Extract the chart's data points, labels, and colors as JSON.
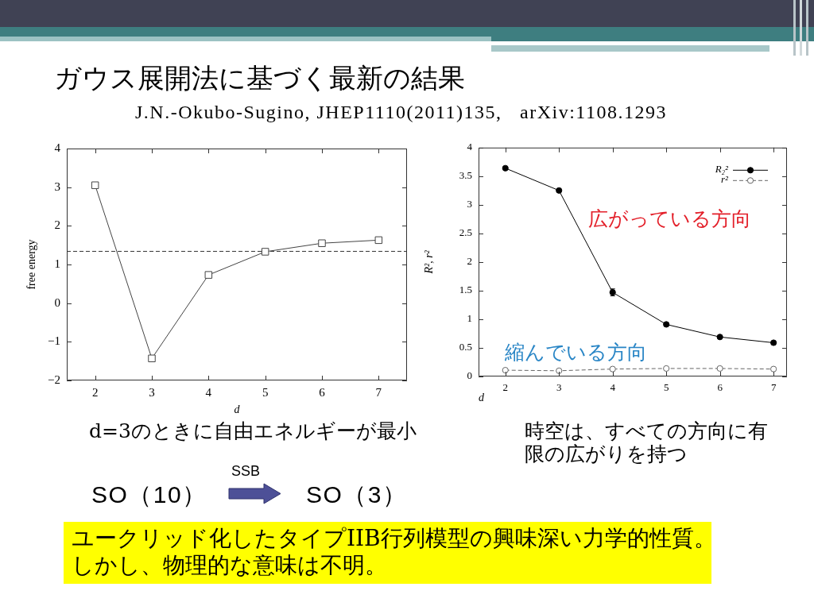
{
  "chart_data": [
    {
      "type": "other",
      "title": "ガウス展開法に基づく最新の結果",
      "subtitle": "J.N.-Okubo-Sugino, JHEP1110(2011)135,   arXiv:1108.1293"
    },
    {
      "type": "line",
      "xlabel": "d",
      "ylabel": "free energy",
      "x": [
        2,
        3,
        4,
        5,
        6,
        7
      ],
      "values": [
        3.05,
        -1.43,
        0.73,
        1.33,
        1.55,
        1.63
      ],
      "color": "#444444",
      "marker": "square",
      "xlim": [
        1.5,
        7.5
      ],
      "xticks": [
        2,
        3,
        4,
        5,
        6,
        7
      ],
      "ylim": [
        -2,
        4
      ],
      "yticks": [
        -2,
        -1,
        0,
        1,
        2,
        3,
        4
      ],
      "ref_lines": [
        {
          "axis": "y",
          "value": 1.34,
          "color": "#333333",
          "line_style": "dashed"
        }
      ],
      "annotations": [
        "d=3のときに自由エネルギーが最小"
      ]
    },
    {
      "type": "line",
      "xlabel": "d",
      "ylabel": "R², r²",
      "x": [
        2,
        3,
        4,
        5,
        6,
        7
      ],
      "series": [
        {
          "name": "R₂²",
          "color": "#000000",
          "values": [
            3.64,
            3.25,
            1.47,
            0.91,
            0.69,
            0.59
          ],
          "errors": [
            null,
            null,
            0.06,
            null,
            null,
            null
          ]
        },
        {
          "name": "r²",
          "color": "#666666",
          "line_style": "dashed",
          "values": [
            0.11,
            0.1,
            0.13,
            0.14,
            0.14,
            0.13
          ]
        }
      ],
      "marker": "circle",
      "xlim": [
        1.5,
        7.25
      ],
      "xticks": [
        2,
        3,
        4,
        5,
        6,
        7
      ],
      "ylim": [
        0,
        4
      ],
      "yticks": [
        0,
        0.5,
        1,
        1.5,
        2,
        2.5,
        3,
        3.5,
        4
      ],
      "legend": "top right",
      "annotations": [
        "広がっている方向",
        "縮んでいる方向",
        "時空は、すべての方向に有限の広がりを持つ"
      ]
    },
    {
      "type": "other",
      "annotations": [
        "SO（10）",
        "SSB",
        "SO（3）",
        "ユークリッド化したタイプIIB行列模型の興味深い力学的性質。",
        "しかし、物理的な意味は不明。"
      ]
    }
  ]
}
